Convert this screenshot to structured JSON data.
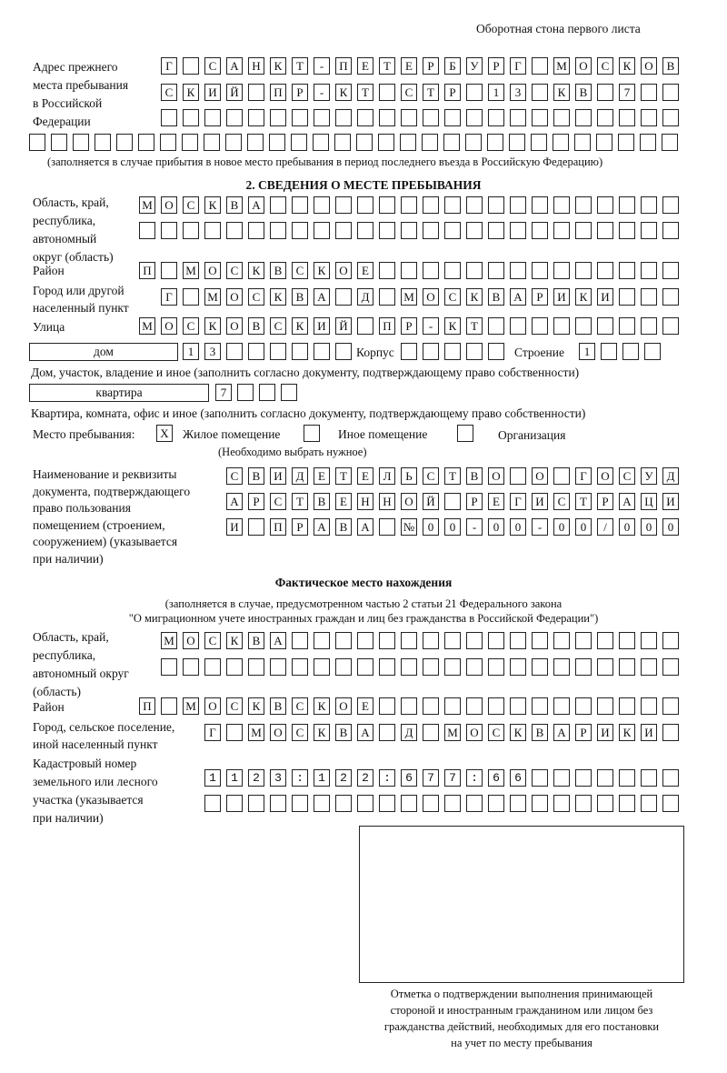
{
  "header": "Оборотная стона первого листа",
  "prev_address": {
    "label": "Адрес прежнего\nместа пребывания\nв Российской\nФедерации",
    "rows": [
      "Г САНКТ-ПЕТЕРБУРГ МОСКОВ",
      "СКИЙ ПР-КТ СТР 13 КВ 7  ",
      "",
      ""
    ],
    "note": "(заполняется в случае прибытия в новое место пребывания в период последнего въезда в Российскую Федерацию)"
  },
  "section2": {
    "title": "2. СВЕДЕНИЯ О МЕСТЕ ПРЕБЫВАНИЯ",
    "region_label": "Область, край,\nреспублика,\nавтономный\nокруг (область)",
    "region_rows": [
      "МОСКВА",
      ""
    ],
    "district_label": "Район",
    "district": "П МОСКВСКОЕ",
    "city_label": "Город или другой\nнаселенный пункт",
    "city": "Г МОСКВА Д МОСКВАРИКИ",
    "street_label": "Улица",
    "street": "МОСКОВСКИЙ ПР-КТ",
    "house_type": "дом",
    "house": "13",
    "building_label": "Корпус",
    "building": "",
    "structure_label": "Строение",
    "structure": "1",
    "house_note": "Дом, участок, владение и иное (заполнить согласно документу, подтверждающему право собственности)",
    "apt_type": "квартира",
    "apt": "7",
    "apt_note": "Квартира, комната, офис и иное (заполнить согласно документу, подтверждающему право собственности)",
    "place_label": "Место пребывания:",
    "place_options": [
      {
        "label": "Жилое помещение",
        "mark": "X"
      },
      {
        "label": "Иное помещение",
        "mark": ""
      },
      {
        "label": "Организация",
        "mark": ""
      }
    ],
    "place_note": "(Необходимо выбрать нужное)",
    "doc_label": "Наименование и реквизиты\nдокумента, подтверждающего\nправо пользования\nпомещением (строением,\nсооружением) (указывается\nпри наличии)",
    "doc_rows": [
      "СВИДЕТЕЛЬСТВО О ГОСУД",
      "АРСТВЕННОЙ РЕГИСТРАЦИ",
      "И ПРАВА №00-00-00/000"
    ]
  },
  "actual": {
    "title": "Фактическое место нахождения",
    "note1": "(заполняется в случае, предусмотренном частью 2 статьи 21 Федерального закона",
    "note2": "\"О миграционном учете иностранных граждан и лиц без гражданства в Российской Федерации\")",
    "region_label": "Область, край,\nреспублика,\nавтономный округ\n(область)",
    "region_rows": [
      "МОСКВА",
      ""
    ],
    "district_label": "Район",
    "district": "П МОСКВСКОЕ",
    "city_label": "Город, сельское поселение,\nиной населенный пункт",
    "city": "Г МОСКВА Д МОСКВАРИКИ",
    "cadastre_label": "Кадастровый номер\nземельного или лесного\nучастка (указывается\nпри наличии)",
    "cadastre_rows": [
      "1123:122:677:66",
      ""
    ]
  },
  "stamp_caption": "Отметка о подтверждении выполнения принимающей\nстороной и иностранным гражданином или лицом без\nгражданства действий, необходимых для его постановки\nна учет по месту пребывания"
}
